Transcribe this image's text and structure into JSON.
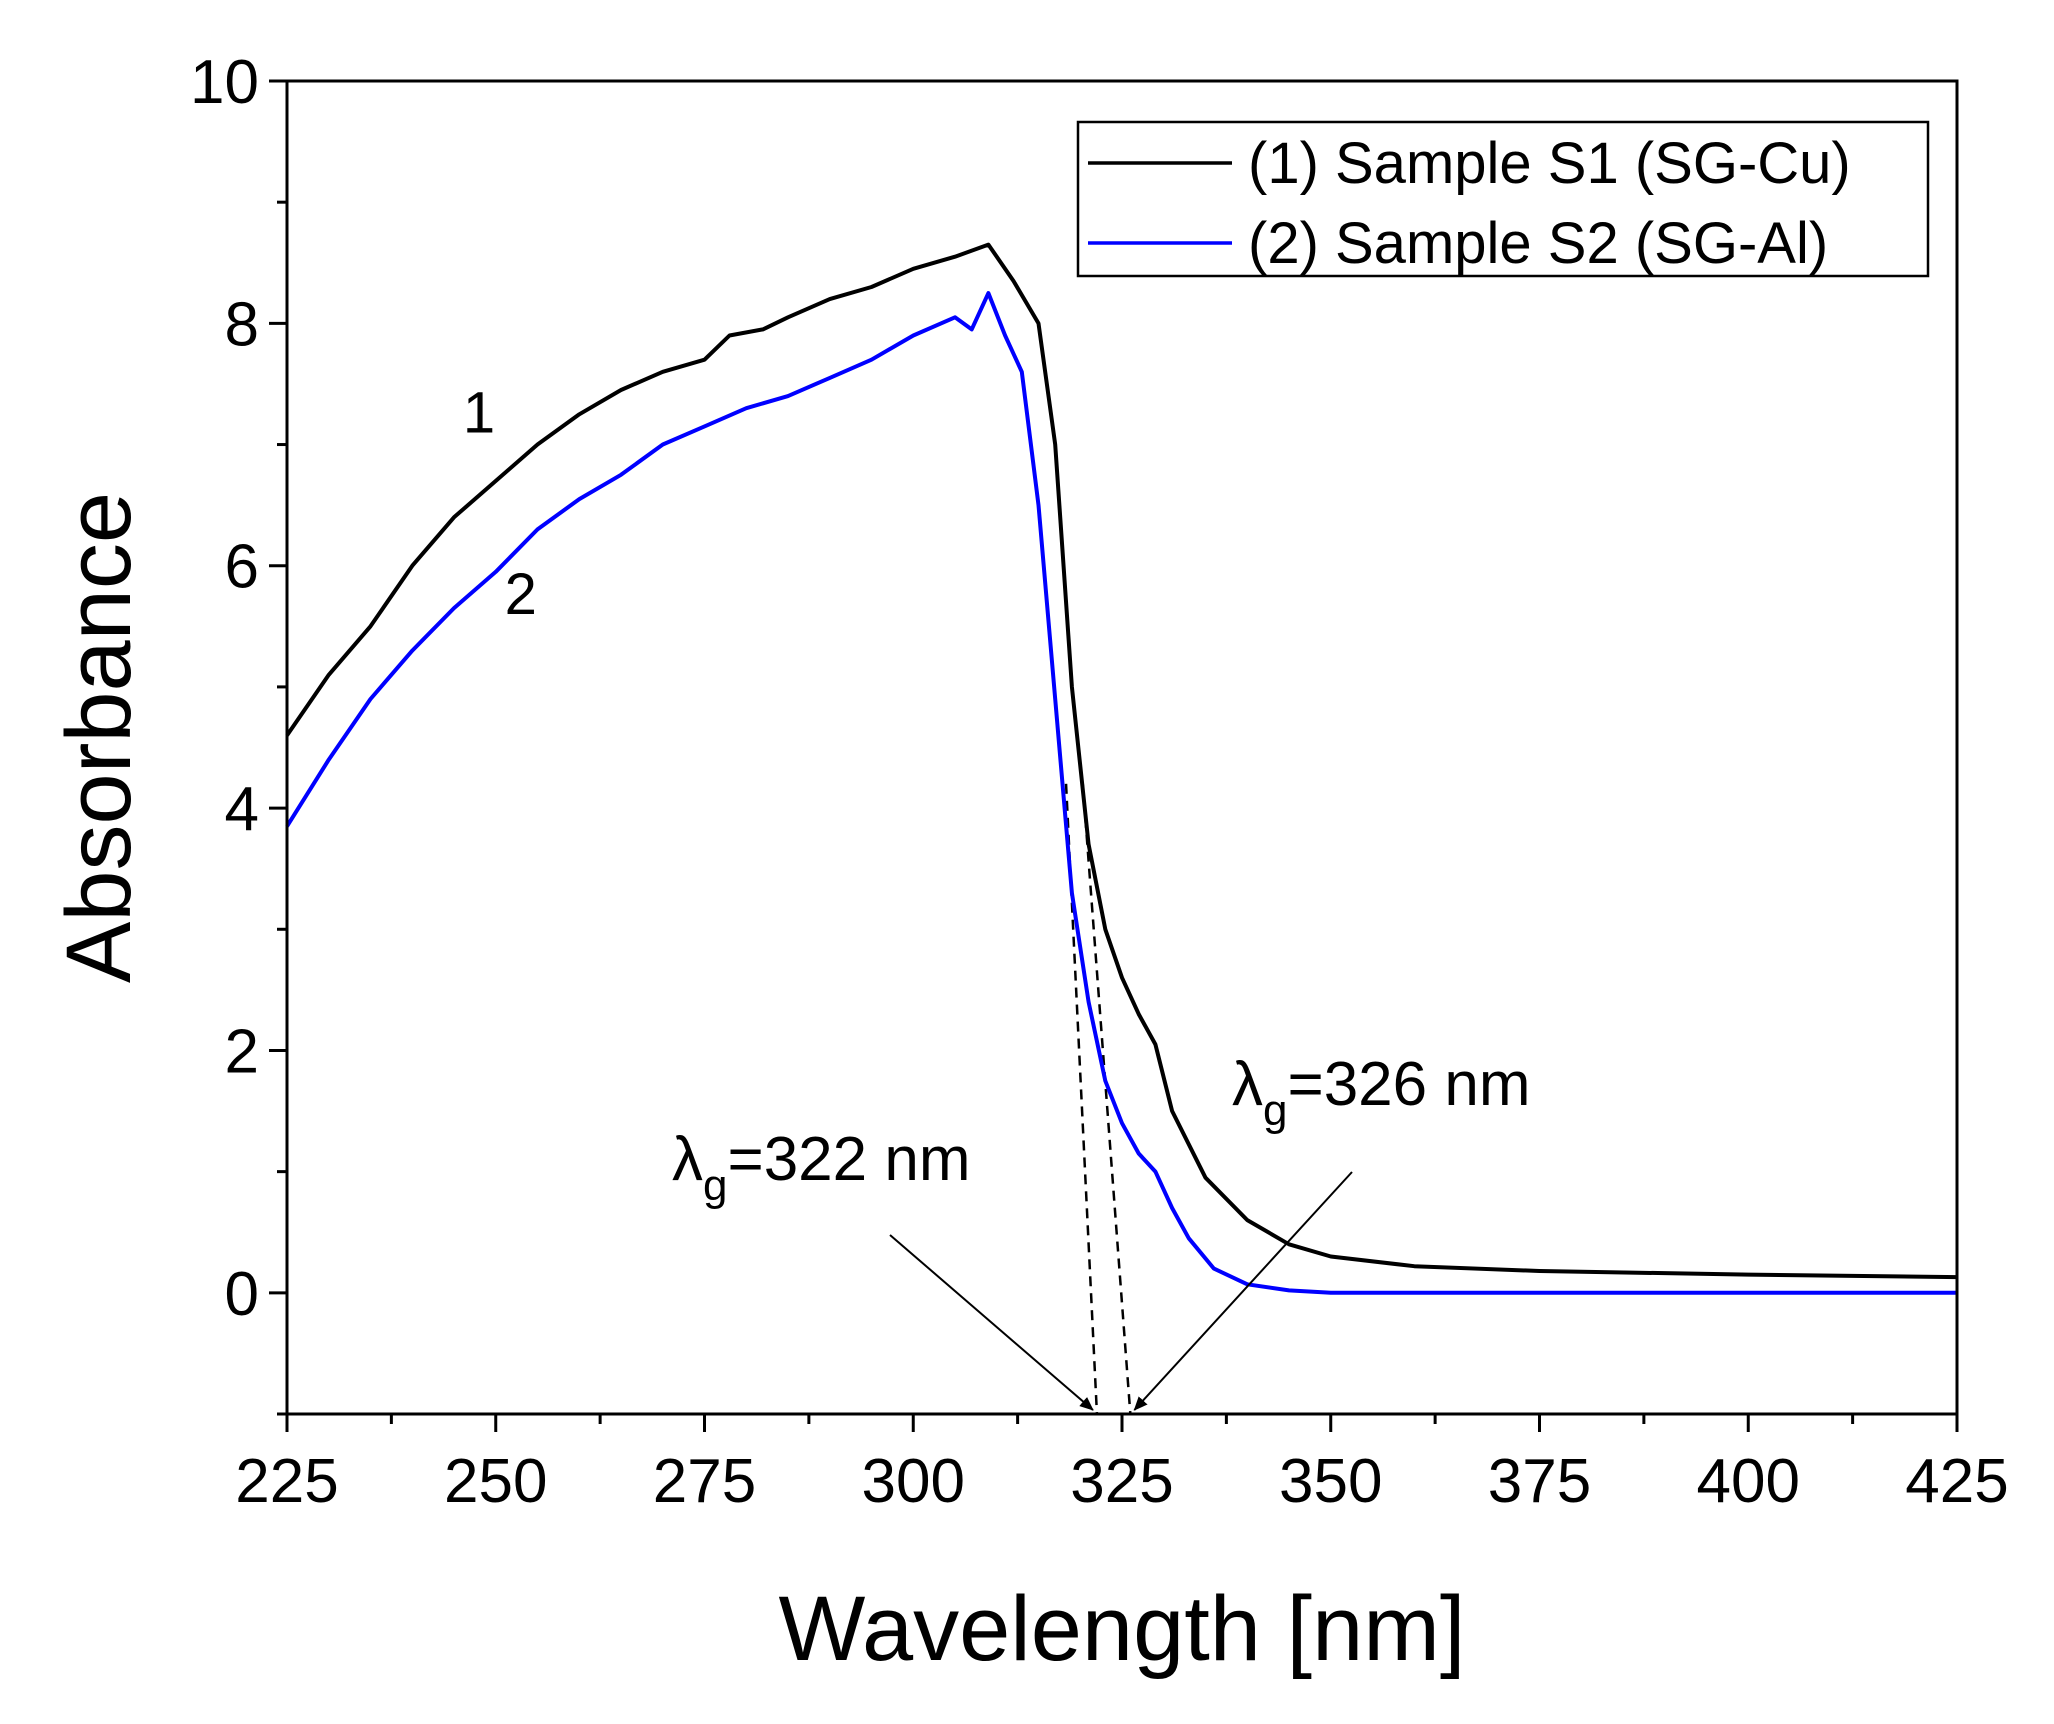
{
  "chart_data": {
    "type": "line",
    "xlabel": "Wavelength [nm]",
    "ylabel": "Absorbance",
    "xlim": [
      225,
      425
    ],
    "ylim": [
      -1,
      10
    ],
    "xticks": [
      225,
      250,
      275,
      300,
      325,
      350,
      375,
      400,
      425
    ],
    "yticks": [
      0,
      2,
      4,
      6,
      8,
      10
    ],
    "legend": {
      "position": "top-right"
    },
    "series": [
      {
        "name": "(1) Sample S1 (SG-Cu)",
        "curve_label": "1",
        "color": "#000000",
        "x": [
          225,
          230,
          235,
          240,
          245,
          250,
          255,
          260,
          265,
          270,
          275,
          278,
          282,
          285,
          290,
          295,
          300,
          305,
          309,
          312,
          315,
          317,
          319,
          321,
          323,
          325,
          327,
          329,
          331,
          335,
          340,
          345,
          350,
          360,
          375,
          400,
          425
        ],
        "y": [
          4.6,
          5.1,
          5.5,
          6.0,
          6.4,
          6.7,
          7.0,
          7.25,
          7.45,
          7.6,
          7.7,
          7.9,
          7.95,
          8.05,
          8.2,
          8.3,
          8.45,
          8.55,
          8.65,
          8.35,
          8.0,
          7.0,
          5.0,
          3.7,
          3.0,
          2.6,
          2.3,
          2.05,
          1.5,
          0.95,
          0.6,
          0.4,
          0.3,
          0.22,
          0.18,
          0.15,
          0.13
        ]
      },
      {
        "name": "(2) Sample S2 (SG-Al)",
        "curve_label": "2",
        "color": "#0000ff",
        "x": [
          225,
          230,
          235,
          240,
          245,
          250,
          255,
          260,
          265,
          270,
          275,
          280,
          285,
          290,
          295,
          300,
          305,
          307,
          309,
          311,
          313,
          315,
          317,
          319,
          321,
          323,
          325,
          327,
          329,
          331,
          333,
          336,
          340,
          345,
          350,
          360,
          425
        ],
        "y": [
          3.85,
          4.4,
          4.9,
          5.3,
          5.65,
          5.95,
          6.3,
          6.55,
          6.75,
          7.0,
          7.15,
          7.3,
          7.4,
          7.55,
          7.7,
          7.9,
          8.05,
          7.95,
          8.25,
          7.9,
          7.6,
          6.5,
          4.9,
          3.3,
          2.4,
          1.75,
          1.4,
          1.15,
          1.0,
          0.7,
          0.45,
          0.2,
          0.07,
          0.02,
          0.0,
          0.0,
          0.0
        ]
      }
    ],
    "annotations": [
      {
        "lambda": "λ",
        "sub": "g",
        "rest": "=322 nm",
        "target_x": 322
      },
      {
        "lambda": "λ",
        "sub": "g",
        "rest": "=326 nm",
        "target_x": 326
      }
    ]
  }
}
